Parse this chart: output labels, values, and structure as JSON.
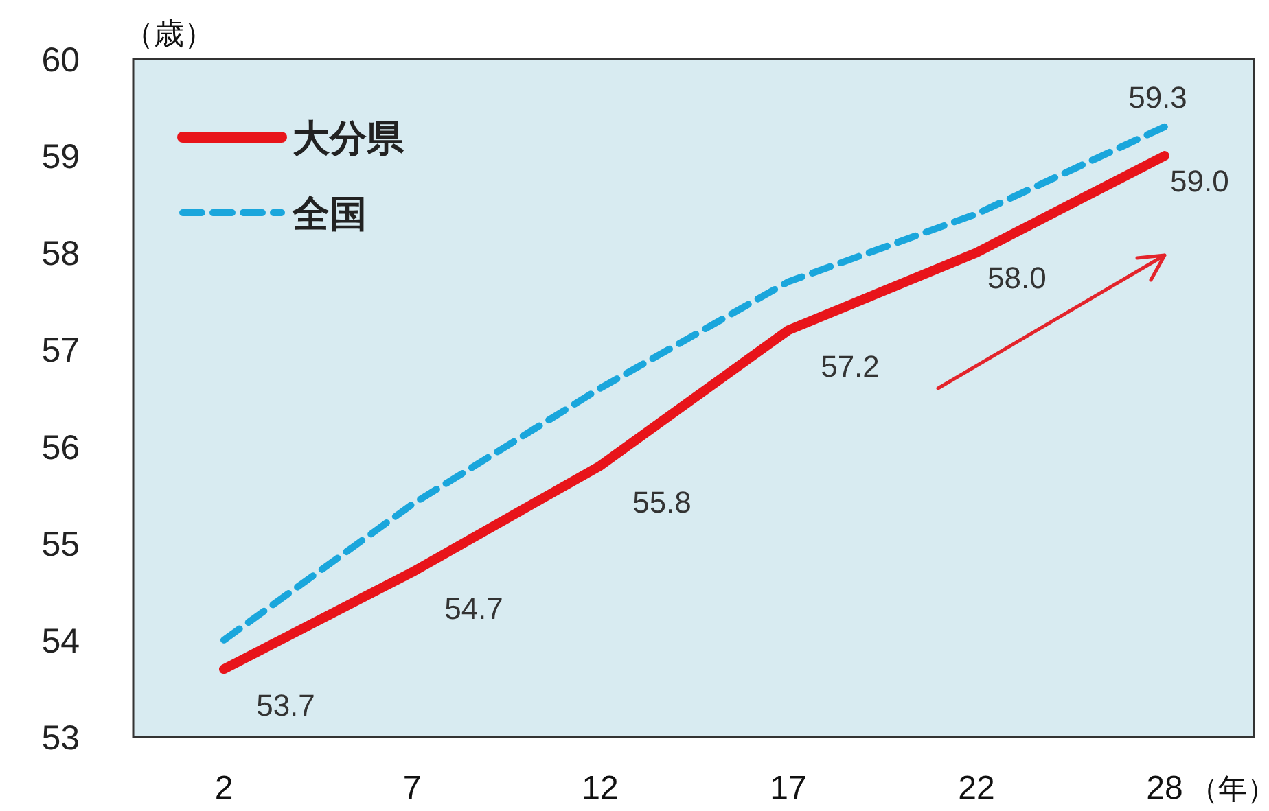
{
  "chart_data": {
    "type": "line",
    "ylabel": "（歳）",
    "xlabel": "（年）",
    "categories": [
      "2",
      "7",
      "12",
      "17",
      "22",
      "28"
    ],
    "series": [
      {
        "name": "大分県",
        "color": "#e8141a",
        "line_style": "solid",
        "values": [
          53.7,
          54.7,
          55.8,
          57.2,
          58.0,
          59.0
        ],
        "value_labels": [
          "53.7",
          "54.7",
          "55.8",
          "57.2",
          "58.0",
          "59.0"
        ]
      },
      {
        "name": "全国",
        "color": "#1aa6dc",
        "line_style": "dashed",
        "values": [
          54.0,
          55.4,
          56.6,
          57.7,
          58.4,
          59.3
        ],
        "value_labels": [
          null,
          null,
          null,
          null,
          null,
          "59.3"
        ]
      }
    ],
    "ylim": [
      53,
      60
    ],
    "yticks": [
      53,
      54,
      55,
      56,
      57,
      58,
      59,
      60
    ],
    "grid": false,
    "legend": "top left",
    "marker": "none"
  }
}
